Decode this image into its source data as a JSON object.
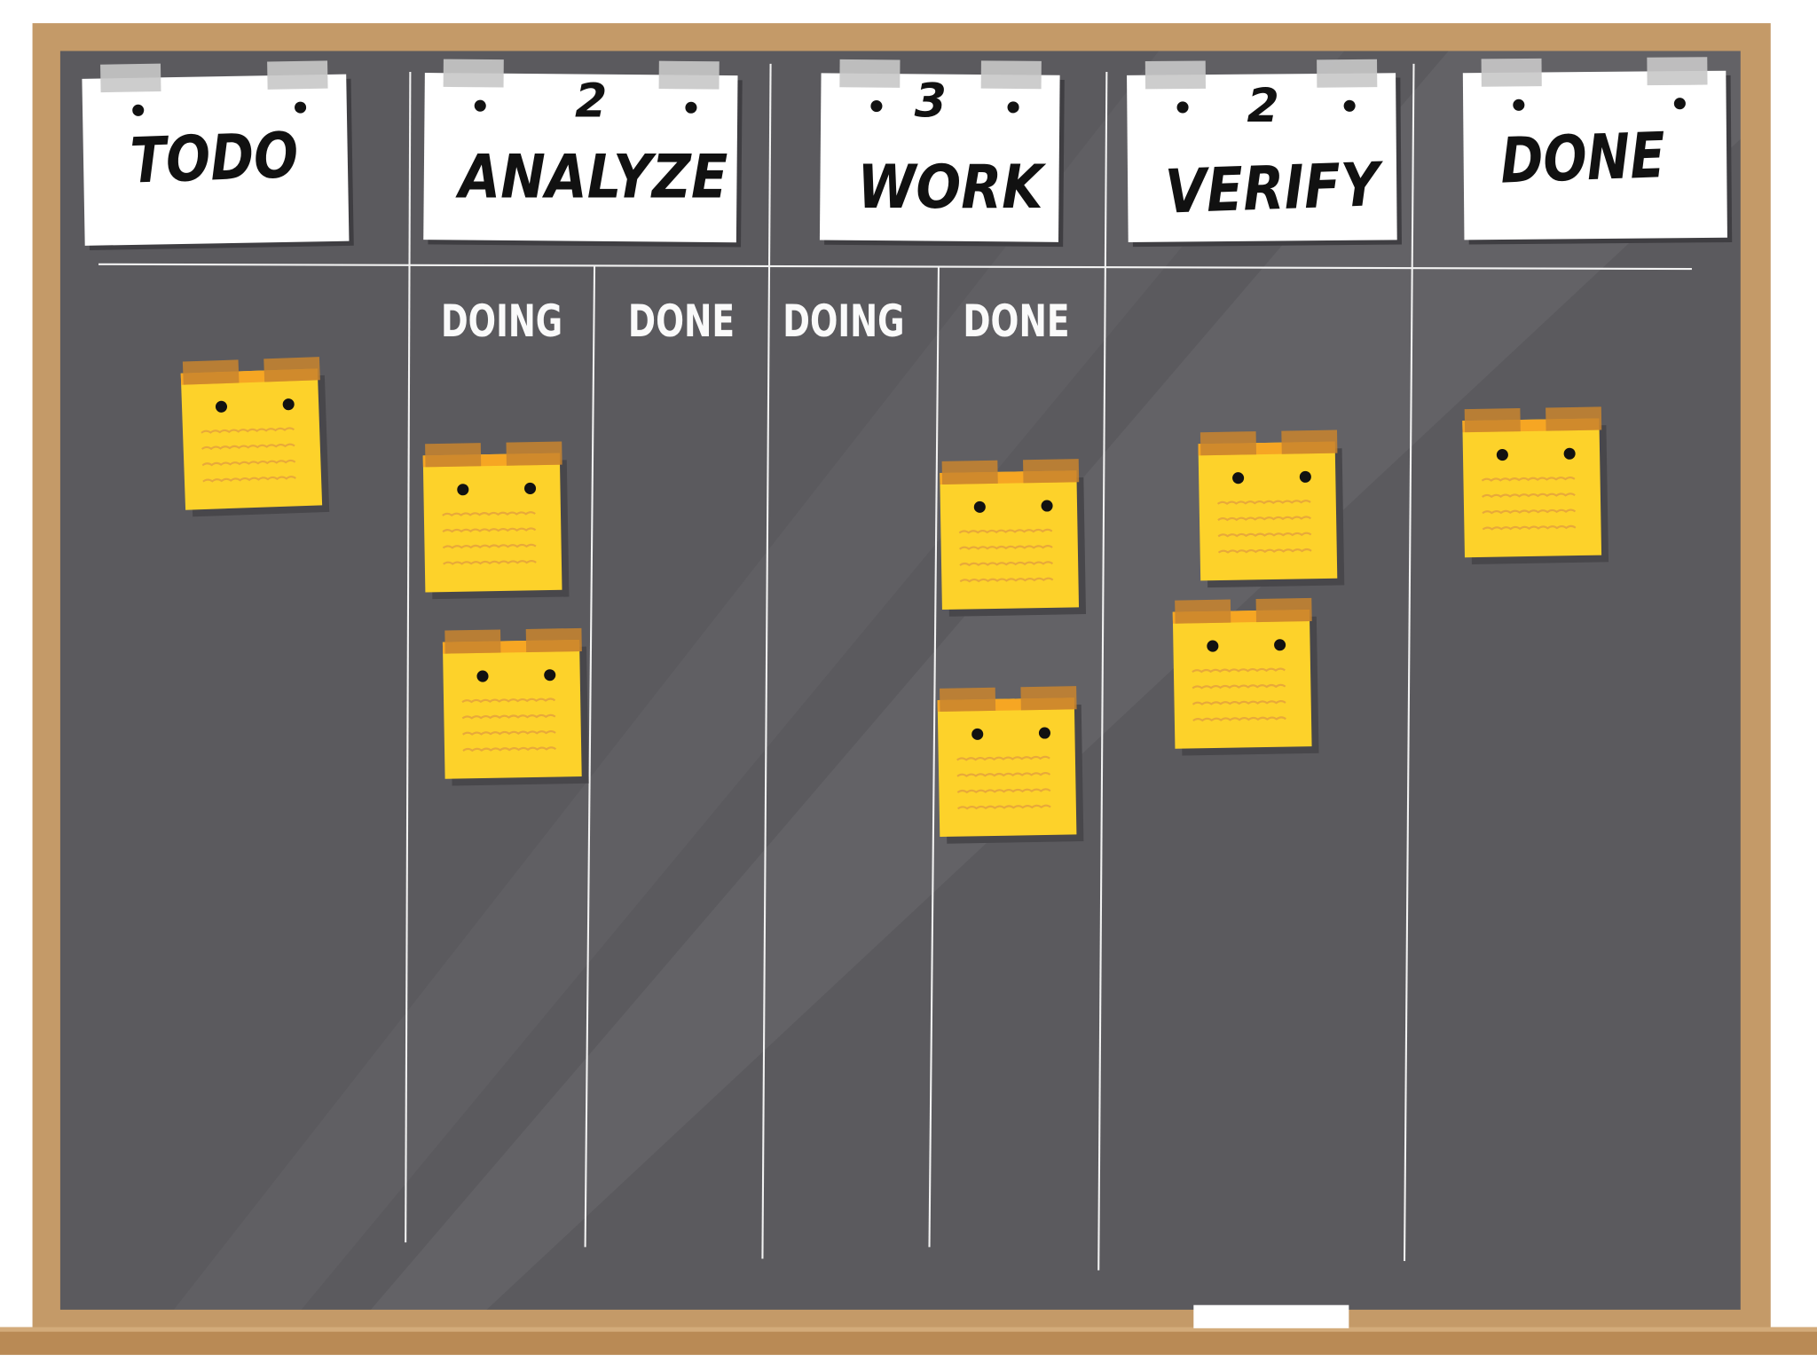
{
  "columns": [
    {
      "title": "TODO"
    },
    {
      "title": "ANALYZE",
      "limit": 2,
      "subcolumns": [
        "DOING",
        "DONE"
      ]
    },
    {
      "title": "WORK",
      "limit": 3,
      "subcolumns": [
        "DOING",
        "DONE"
      ]
    },
    {
      "title": "VERIFY",
      "limit": 2
    },
    {
      "title": "DONE"
    }
  ]
}
